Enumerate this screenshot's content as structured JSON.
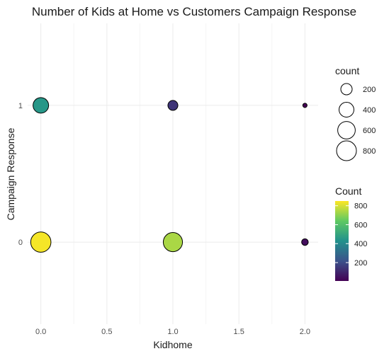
{
  "chart_data": {
    "type": "scatter",
    "title": "Number of Kids at Home vs Customers Campaign Response",
    "xlabel": "Kidhome",
    "ylabel": "Campaign Response",
    "x_ticks": [
      "0.0",
      "0.5",
      "1.0",
      "1.5",
      "2.0"
    ],
    "y_ticks": [
      "0",
      "1"
    ],
    "xlim": [
      -0.1,
      2.1
    ],
    "ylim": [
      -0.6,
      1.6
    ],
    "grid": true,
    "points": [
      {
        "x": 0,
        "y": 0,
        "count": 840
      },
      {
        "x": 0,
        "y": 1,
        "count": 450
      },
      {
        "x": 1,
        "y": 0,
        "count": 740
      },
      {
        "x": 1,
        "y": 1,
        "count": 140
      },
      {
        "x": 2,
        "y": 0,
        "count": 40
      },
      {
        "x": 2,
        "y": 1,
        "count": 6
      }
    ],
    "legend_size": {
      "title": "count",
      "entries": [
        {
          "label": "200",
          "value": 200
        },
        {
          "label": "400",
          "value": 400
        },
        {
          "label": "600",
          "value": 600
        },
        {
          "label": "800",
          "value": 800
        }
      ]
    },
    "legend_color": {
      "title": "Count",
      "ticks": [
        {
          "label": "800",
          "value": 800
        },
        {
          "label": "600",
          "value": 600
        },
        {
          "label": "400",
          "value": 400
        },
        {
          "label": "200",
          "value": 200
        }
      ],
      "range": [
        6,
        850
      ],
      "palette": [
        "#440154",
        "#3b528b",
        "#21918c",
        "#5ec962",
        "#fde725"
      ]
    }
  }
}
